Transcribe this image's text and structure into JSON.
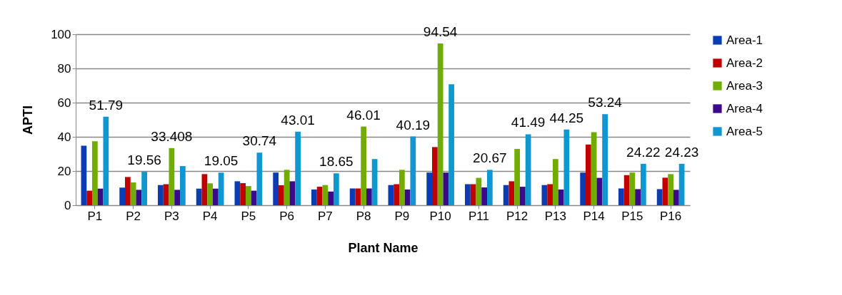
{
  "chart_data": {
    "type": "bar",
    "xlabel": "Plant Name",
    "ylabel": "APTI",
    "categories": [
      "P1",
      "P2",
      "P3",
      "P4",
      "P5",
      "P6",
      "P7",
      "P8",
      "P9",
      "P10",
      "P11",
      "P12",
      "P13",
      "P14",
      "P15",
      "P16"
    ],
    "series": [
      {
        "name": "Area-1",
        "color": "#0a3cb4",
        "values": [
          34.8,
          10.3,
          11.8,
          9.7,
          14,
          19.1,
          9.2,
          9.8,
          11.8,
          19.1,
          12.3,
          11.8,
          11.8,
          19.1,
          9.8,
          9.4
        ]
      },
      {
        "name": "Area-2",
        "color": "#c00000",
        "values": [
          8.5,
          16.5,
          12.3,
          18.2,
          12.9,
          11.7,
          10.8,
          9.8,
          12.3,
          34,
          12.3,
          14,
          12.3,
          35.5,
          17.6,
          16.1
        ]
      },
      {
        "name": "Area-3",
        "color": "#70ad00",
        "values": [
          37.4,
          13.3,
          33.408,
          12.8,
          11.2,
          20.7,
          11.8,
          46.01,
          20.7,
          94.54,
          16,
          32.9,
          27,
          42.7,
          19.1,
          18.2
        ],
        "value_labels": [
          null,
          null,
          "33.408",
          null,
          null,
          null,
          null,
          "46.01",
          null,
          "94.54",
          null,
          null,
          null,
          null,
          null,
          null
        ]
      },
      {
        "name": "Area-4",
        "color": "#3a0a8a",
        "values": [
          9.7,
          9,
          9,
          9.7,
          8.5,
          14,
          8,
          9.8,
          9.2,
          19.1,
          10.4,
          10.8,
          9.2,
          16,
          9.4,
          9
        ]
      },
      {
        "name": "Area-5",
        "color": "#0f97d0",
        "values": [
          51.79,
          19.56,
          22.9,
          19.05,
          30.74,
          43.01,
          18.65,
          27,
          40.19,
          70.7,
          20.67,
          41.49,
          44.25,
          53.24,
          24.22,
          24.23
        ],
        "value_labels": [
          "51.79",
          "19.56",
          null,
          "19.05",
          "30.74",
          "43.01",
          "18.65",
          null,
          "40.19",
          null,
          "20.67",
          "41.49",
          "44.25",
          "53.24",
          "24.22",
          "24.23"
        ]
      }
    ],
    "ylim": [
      0,
      100
    ],
    "yticks": [
      0,
      20,
      40,
      60,
      80,
      100
    ],
    "grid": "y",
    "legend": "right"
  }
}
